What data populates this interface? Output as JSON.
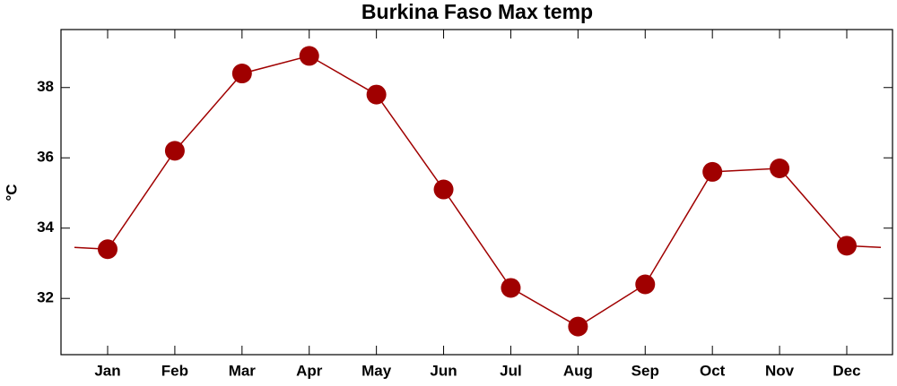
{
  "chart_data": {
    "type": "line",
    "title": "Burkina Faso Max temp",
    "y_label": "°C",
    "categories": [
      "Jan",
      "Feb",
      "Mar",
      "Apr",
      "May",
      "Jun",
      "Jul",
      "Aug",
      "Sep",
      "Oct",
      "Nov",
      "Dec"
    ],
    "values": [
      33.4,
      36.2,
      38.4,
      38.9,
      37.8,
      35.1,
      32.3,
      31.2,
      32.4,
      35.6,
      35.7,
      33.5
    ],
    "color": "#a00000",
    "ylim": [
      30.4,
      39.65
    ],
    "yticks": [
      32,
      34,
      36,
      38
    ],
    "grid": false
  }
}
